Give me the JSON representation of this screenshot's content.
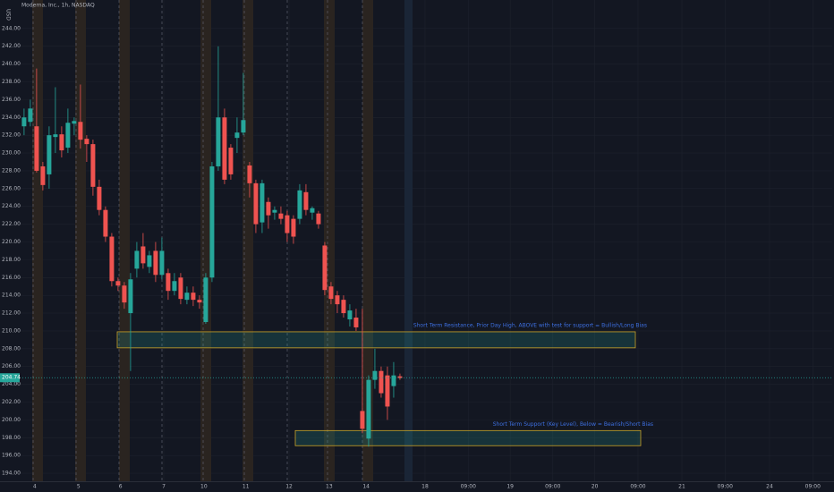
{
  "chart_data": {
    "type": "candlestick",
    "title": "Moderna, Inc., 1h, NASDAQ",
    "currency": "USD",
    "up_color": "#26a69a",
    "down_color": "#ef5350",
    "grid": true,
    "xlim": [
      -0.7,
      129
    ],
    "ylim": [
      193,
      247.2
    ],
    "yticks": [
      {
        "value": 194,
        "label": "194.00"
      },
      {
        "value": 196,
        "label": "196.00"
      },
      {
        "value": 198,
        "label": "198.00"
      },
      {
        "value": 200,
        "label": "200.00"
      },
      {
        "value": 202,
        "label": "202.00"
      },
      {
        "value": 204,
        "label": "204.00"
      },
      {
        "value": 206,
        "label": "206.00"
      },
      {
        "value": 208,
        "label": "208.00"
      },
      {
        "value": 210,
        "label": "210.00"
      },
      {
        "value": 212,
        "label": "212.00"
      },
      {
        "value": 214,
        "label": "214.00"
      },
      {
        "value": 216,
        "label": "216.00"
      },
      {
        "value": 218,
        "label": "218.00"
      },
      {
        "value": 220,
        "label": "220.00"
      },
      {
        "value": 222,
        "label": "222.00"
      },
      {
        "value": 224,
        "label": "224.00"
      },
      {
        "value": 226,
        "label": "226.00"
      },
      {
        "value": 228,
        "label": "228.00"
      },
      {
        "value": 230,
        "label": "230.00"
      },
      {
        "value": 232,
        "label": "232.00"
      },
      {
        "value": 234,
        "label": "234.00"
      },
      {
        "value": 236,
        "label": "236.00"
      },
      {
        "value": 238,
        "label": "238.00"
      },
      {
        "value": 240,
        "label": "240.00"
      },
      {
        "value": 242,
        "label": "242.00"
      },
      {
        "value": 244,
        "label": "244.00"
      }
    ],
    "xticks": [
      {
        "value": 1.7,
        "label": "4"
      },
      {
        "value": 8.7,
        "label": "5"
      },
      {
        "value": 15.4,
        "label": "6"
      },
      {
        "value": 22.3,
        "label": "7"
      },
      {
        "value": 28.7,
        "label": "10"
      },
      {
        "value": 35.4,
        "label": "11"
      },
      {
        "value": 42.3,
        "label": "12"
      },
      {
        "value": 48.7,
        "label": "13"
      },
      {
        "value": 54.6,
        "label": "14"
      },
      {
        "value": 64,
        "label": "18"
      },
      {
        "value": 70.9,
        "label": "09:00"
      },
      {
        "value": 77.6,
        "label": "19"
      },
      {
        "value": 84.4,
        "label": "09:00"
      },
      {
        "value": 91.1,
        "label": "20"
      },
      {
        "value": 98,
        "label": "09:00"
      },
      {
        "value": 105,
        "label": "21"
      },
      {
        "value": 111.9,
        "label": "09:00"
      },
      {
        "value": 119,
        "label": "24"
      },
      {
        "value": 125.9,
        "label": "09:00"
      }
    ],
    "ohlc": [
      [
        233,
        235,
        232,
        234
      ],
      [
        233.5,
        236,
        233,
        235
      ],
      [
        233,
        239.5,
        227.8,
        228
      ],
      [
        228.5,
        229,
        225.8,
        226.4
      ],
      [
        227.6,
        233,
        226,
        232
      ],
      [
        231.8,
        237.4,
        230,
        232.1
      ],
      [
        232.1,
        233,
        229.5,
        230.3
      ],
      [
        230.6,
        235,
        230,
        233.4
      ],
      [
        233.3,
        234,
        232,
        233.6
      ],
      [
        233.5,
        237.7,
        230.5,
        231.5
      ],
      [
        231.6,
        232,
        229,
        231
      ],
      [
        231,
        231.5,
        225.2,
        226.2
      ],
      [
        226.2,
        227,
        223,
        223.6
      ],
      [
        223.6,
        224,
        220,
        220.6
      ],
      [
        220.6,
        221,
        215,
        215.6
      ],
      [
        215.6,
        216,
        214.5,
        215.1
      ],
      [
        215.1,
        215.5,
        212.5,
        213.2
      ],
      [
        212,
        216.5,
        205.5,
        215.8
      ],
      [
        217,
        220,
        216,
        219
      ],
      [
        219.5,
        221,
        217,
        217.6
      ],
      [
        217.2,
        219,
        216.5,
        218.5
      ],
      [
        219,
        220,
        215.5,
        216.3
      ],
      [
        216.3,
        220.5,
        215.8,
        219
      ],
      [
        216.5,
        217,
        213.5,
        214.5
      ],
      [
        214.5,
        216.5,
        214,
        215.6
      ],
      [
        216,
        216.5,
        213,
        213.6
      ],
      [
        213.5,
        215,
        213,
        214.3
      ],
      [
        214.3,
        215,
        212.8,
        213.5
      ],
      [
        213.5,
        214,
        212.5,
        213.2
      ],
      [
        211,
        216.5,
        210.8,
        216
      ],
      [
        216,
        229,
        215.5,
        228.5
      ],
      [
        228.5,
        242,
        228,
        234
      ],
      [
        234,
        235,
        226.5,
        227
      ],
      [
        230.6,
        231,
        227,
        227.6
      ],
      [
        231.7,
        234,
        230,
        232.3
      ],
      [
        232.3,
        239,
        232,
        233.7
      ],
      [
        228.6,
        229,
        225,
        226.6
      ],
      [
        226.6,
        227,
        221,
        222
      ],
      [
        222.2,
        227,
        221,
        226.6
      ],
      [
        224.5,
        225,
        221.5,
        223
      ],
      [
        223.3,
        224,
        222.5,
        223.6
      ],
      [
        223.2,
        224,
        222,
        222.6
      ],
      [
        223,
        223.5,
        220,
        221
      ],
      [
        222.6,
        223,
        219.8,
        220.6
      ],
      [
        222.6,
        226.5,
        222,
        225.8
      ],
      [
        225.6,
        226.5,
        223,
        223.6
      ],
      [
        223.3,
        224,
        222.5,
        223.8
      ],
      [
        223.2,
        223.5,
        221.5,
        222
      ],
      [
        219.6,
        220,
        214,
        214.6
      ],
      [
        215,
        215.5,
        213,
        213.6
      ],
      [
        214,
        214.5,
        212,
        213
      ],
      [
        213.5,
        214,
        211.5,
        212
      ],
      [
        211.3,
        213,
        210.5,
        212.3
      ],
      [
        211.5,
        212.5,
        210,
        210.4
      ],
      [
        201,
        212.5,
        198.5,
        199
      ],
      [
        197.9,
        205,
        197,
        204.5
      ],
      [
        204.5,
        208,
        203.5,
        205.5
      ],
      [
        205.5,
        206,
        202.5,
        203
      ],
      [
        205,
        206,
        200,
        201.5
      ],
      [
        203.8,
        206.5,
        202.5,
        205
      ],
      [
        204.9,
        205.2,
        204.5,
        204.7
      ]
    ],
    "price_line": {
      "value": 204.74,
      "label": "204.74"
    },
    "zones": [
      {
        "label": "Short Term Resistance, Prior Day High, ABOVE with test for support = Bullish/Long Bias",
        "top": 209.9,
        "bottom": 208.1
      },
      {
        "label": "Short Term Support (Key Level), Below = Bearish/Short Bias",
        "top": 198.8,
        "bottom": 197.1
      }
    ]
  }
}
